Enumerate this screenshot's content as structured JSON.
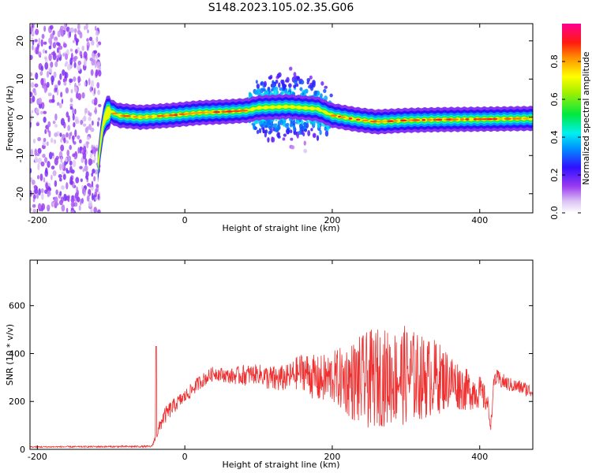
{
  "title": "S148.2023.105.02.35.G06",
  "colors": {
    "snr_line": "#ee3030",
    "background": "#ffffff",
    "axis": "#000000"
  },
  "chart_data": [
    {
      "type": "heatmap",
      "title": "",
      "xlabel": "Height of straight line (km)",
      "ylabel": "Frequency (Hz)",
      "xlim": [
        -210,
        472
      ],
      "ylim": [
        -25,
        24.5
      ],
      "x_ticks": [
        "-200",
        "0",
        "200",
        "400"
      ],
      "x_tick_values": [
        -200,
        0,
        200,
        400
      ],
      "y_ticks": [
        "-20",
        "-10",
        "0",
        "10",
        "20"
      ],
      "y_tick_values": [
        -20,
        -10,
        0,
        10,
        20
      ],
      "colorbar": {
        "label": "Normalized spectral amplitude",
        "range": [
          0,
          1
        ],
        "ticks": [
          "0.0",
          "0.2",
          "0.4",
          "0.6",
          "0.8"
        ],
        "tick_values": [
          0,
          0.2,
          0.4,
          0.6,
          0.8
        ],
        "colormap": "rainbow (white-purple-blue-cyan-green-yellow-red-magenta)"
      },
      "ridge": {
        "x": [
          -118,
          -114,
          -110,
          -106,
          -100,
          -90,
          -60,
          -20,
          20,
          60,
          85,
          100,
          140,
          180,
          200,
          230,
          260,
          300,
          350,
          400,
          472
        ],
        "y": [
          -13,
          -6,
          -1,
          1,
          1.5,
          0.5,
          0,
          0.5,
          1.2,
          1.5,
          1.8,
          2.5,
          2.8,
          2.2,
          0.5,
          -0.5,
          -1.2,
          -0.8,
          -0.6,
          -0.5,
          -0.3
        ]
      },
      "noise_region_x": [
        -210,
        -115
      ],
      "turbulent_region_x": [
        85,
        200
      ]
    },
    {
      "type": "line",
      "title": "",
      "xlabel": "Height of straight line (km)",
      "ylabel": "SNR (10 * v/v)",
      "xlim": [
        -210,
        472
      ],
      "ylim": [
        0,
        790
      ],
      "x_ticks": [
        "-200",
        "0",
        "200",
        "400"
      ],
      "x_tick_values": [
        -200,
        0,
        200,
        400
      ],
      "y_ticks": [
        "0",
        "200",
        "400",
        "600"
      ],
      "y_tick_values": [
        0,
        200,
        400,
        600
      ],
      "series": [
        {
          "color": "#ee3030",
          "envelope_x": [
            -210,
            -45,
            -38,
            -30,
            -20,
            -10,
            0,
            20,
            40,
            60,
            80,
            100,
            120,
            140,
            160,
            180,
            200,
            220,
            240,
            260,
            280,
            300,
            320,
            340,
            360,
            380,
            400,
            410,
            415,
            420,
            440,
            460,
            472
          ],
          "envelope_mean": [
            10,
            12,
            60,
            130,
            165,
            195,
            220,
            280,
            320,
            305,
            310,
            315,
            290,
            300,
            330,
            290,
            300,
            290,
            280,
            300,
            300,
            310,
            300,
            300,
            290,
            250,
            240,
            200,
            100,
            300,
            270,
            255,
            240
          ],
          "envelope_amp": [
            3,
            4,
            20,
            35,
            35,
            30,
            30,
            30,
            30,
            30,
            45,
            40,
            60,
            55,
            80,
            100,
            110,
            150,
            200,
            210,
            200,
            210,
            180,
            160,
            120,
            90,
            70,
            50,
            20,
            40,
            30,
            30,
            30
          ]
        }
      ]
    }
  ]
}
